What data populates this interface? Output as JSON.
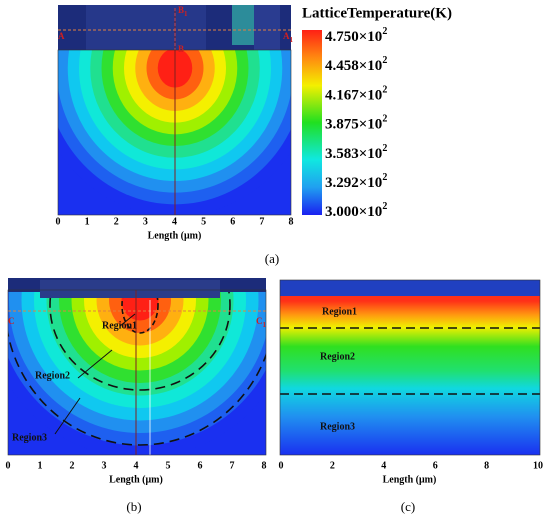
{
  "panel_a": {
    "colorbar_title": "LatticeTemperature(K)",
    "colorbar_labels": [
      {
        "base": "4.750×10",
        "exp": "2"
      },
      {
        "base": "4.458×10",
        "exp": "2"
      },
      {
        "base": "4.167×10",
        "exp": "2"
      },
      {
        "base": "3.875×10",
        "exp": "2"
      },
      {
        "base": "3.583×10",
        "exp": "2"
      },
      {
        "base": "3.292×10",
        "exp": "2"
      },
      {
        "base": "3.000×10",
        "exp": "2"
      }
    ],
    "points": [
      {
        "text": "A",
        "sub": ""
      },
      {
        "text": "A",
        "sub": "1"
      },
      {
        "text": "B",
        "sub": ""
      },
      {
        "text": "B",
        "sub": "1"
      }
    ],
    "xticks": [
      "0",
      "1",
      "2",
      "3",
      "4",
      "5",
      "6",
      "7",
      "8"
    ],
    "xlabel": "Length (μm)",
    "caption": "(a)"
  },
  "panel_b": {
    "points": [
      {
        "text": "C",
        "sub": ""
      },
      {
        "text": "C",
        "sub": "1"
      }
    ],
    "regions": [
      "Region1",
      "Region2",
      "Region3"
    ],
    "xticks": [
      "0",
      "1",
      "2",
      "3",
      "4",
      "5",
      "6",
      "7",
      "8"
    ],
    "xlabel": "Length (μm)",
    "caption": "(b)"
  },
  "panel_c": {
    "regions": [
      "Region1",
      "Region2",
      "Region3"
    ],
    "xticks": [
      "0",
      "2",
      "4",
      "6",
      "8",
      "10"
    ],
    "xlabel": "Length (μm)",
    "caption": "(c)"
  }
}
